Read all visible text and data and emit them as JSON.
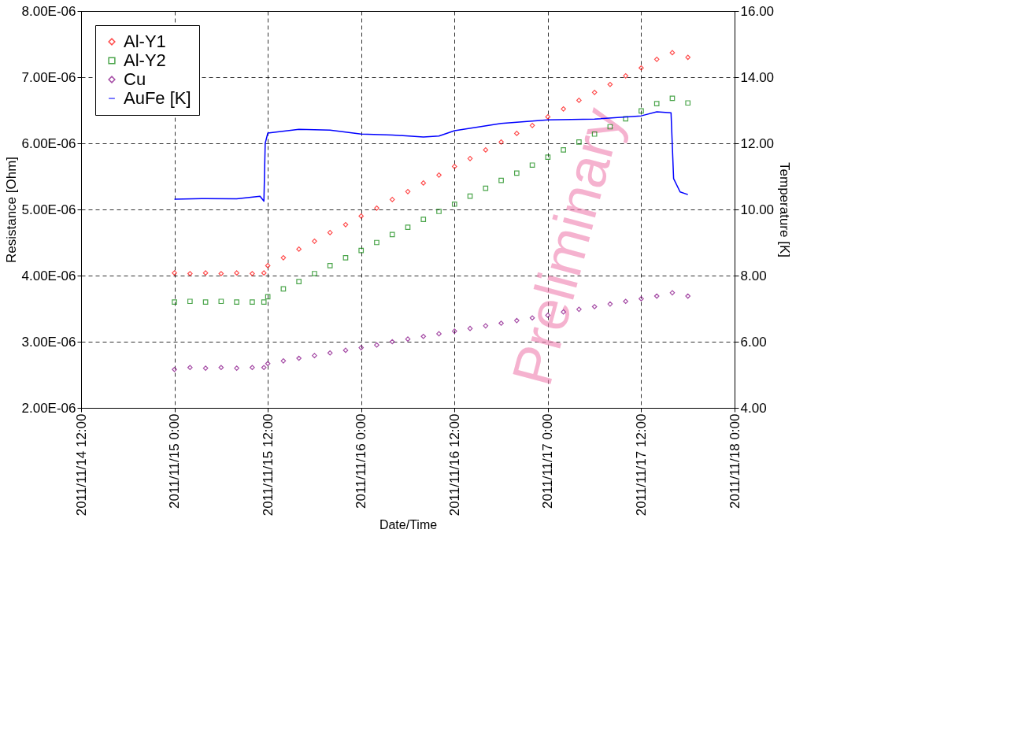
{
  "chart_data": {
    "type": "scatter",
    "xlabel": "Date/Time",
    "ylabel": "Resistance [Ohm]",
    "y2label": "Temperature [K]",
    "annotations": [
      "Preliminary"
    ],
    "x": [
      "2011-11-15T00:00",
      "2011-11-15T02:00",
      "2011-11-15T04:00",
      "2011-11-15T06:00",
      "2011-11-15T08:00",
      "2011-11-15T10:00",
      "2011-11-15T11:30",
      "2011-11-15T12:00",
      "2011-11-15T14:00",
      "2011-11-15T16:00",
      "2011-11-15T18:00",
      "2011-11-15T20:00",
      "2011-11-15T22:00",
      "2011-11-16T00:00",
      "2011-11-16T02:00",
      "2011-11-16T04:00",
      "2011-11-16T06:00",
      "2011-11-16T08:00",
      "2011-11-16T10:00",
      "2011-11-16T12:00",
      "2011-11-16T14:00",
      "2011-11-16T16:00",
      "2011-11-16T18:00",
      "2011-11-16T20:00",
      "2011-11-16T22:00",
      "2011-11-17T00:00",
      "2011-11-17T02:00",
      "2011-11-17T04:00",
      "2011-11-17T06:00",
      "2011-11-17T08:00",
      "2011-11-17T10:00",
      "2011-11-17T12:00",
      "2011-11-17T14:00",
      "2011-11-17T16:00",
      "2011-11-17T18:00"
    ],
    "series": [
      {
        "name": "Al-Y1",
        "color": "#ff0000",
        "marker": "diamond",
        "values": [
          4.04e-06,
          4.03e-06,
          4.04e-06,
          4.03e-06,
          4.04e-06,
          4.03e-06,
          4.04e-06,
          4.15e-06,
          4.27e-06,
          4.4e-06,
          4.52e-06,
          4.65e-06,
          4.77e-06,
          4.9e-06,
          5.02e-06,
          5.15e-06,
          5.27e-06,
          5.4e-06,
          5.52e-06,
          5.65e-06,
          5.77e-06,
          5.9e-06,
          6.02e-06,
          6.15e-06,
          6.27e-06,
          6.4e-06,
          6.52e-06,
          6.65e-06,
          6.77e-06,
          6.89e-06,
          7.02e-06,
          7.14e-06,
          7.27e-06,
          7.37e-06,
          7.3e-06
        ]
      },
      {
        "name": "Al-Y2",
        "color": "#008000",
        "marker": "square",
        "values": [
          3.6e-06,
          3.61e-06,
          3.6e-06,
          3.61e-06,
          3.6e-06,
          3.6e-06,
          3.6e-06,
          3.68e-06,
          3.8e-06,
          3.91e-06,
          4.03e-06,
          4.15e-06,
          4.27e-06,
          4.38e-06,
          4.5e-06,
          4.62e-06,
          4.73e-06,
          4.85e-06,
          4.97e-06,
          5.08e-06,
          5.2e-06,
          5.32e-06,
          5.44e-06,
          5.55e-06,
          5.67e-06,
          5.79e-06,
          5.9e-06,
          6.02e-06,
          6.14e-06,
          6.25e-06,
          6.37e-06,
          6.49e-06,
          6.6e-06,
          6.68e-06,
          6.61e-06
        ]
      },
      {
        "name": "Cu",
        "color": "#800080",
        "marker": "diamond",
        "values": [
          2.58e-06,
          2.61e-06,
          2.6e-06,
          2.61e-06,
          2.6e-06,
          2.61e-06,
          2.61e-06,
          2.67e-06,
          2.71e-06,
          2.75e-06,
          2.79e-06,
          2.83e-06,
          2.87e-06,
          2.91e-06,
          2.95e-06,
          3e-06,
          3.04e-06,
          3.08e-06,
          3.12e-06,
          3.16e-06,
          3.2e-06,
          3.24e-06,
          3.28e-06,
          3.32e-06,
          3.36e-06,
          3.4e-06,
          3.45e-06,
          3.49e-06,
          3.53e-06,
          3.57e-06,
          3.61e-06,
          3.65e-06,
          3.69e-06,
          3.74e-06,
          3.69e-06
        ]
      },
      {
        "name": "AuFe [K]",
        "type": "line",
        "axis": "y2",
        "color": "#0000ff",
        "marker": "none",
        "x": [
          "2011-11-15T00:00",
          "2011-11-15T04:00",
          "2011-11-15T08:00",
          "2011-11-15T11:00",
          "2011-11-15T11:30",
          "2011-11-15T11:40",
          "2011-11-15T12:00",
          "2011-11-15T16:00",
          "2011-11-15T20:00",
          "2011-11-16T00:00",
          "2011-11-16T04:00",
          "2011-11-16T08:00",
          "2011-11-16T10:00",
          "2011-11-16T12:00",
          "2011-11-16T18:00",
          "2011-11-17T00:00",
          "2011-11-17T06:00",
          "2011-11-17T12:00",
          "2011-11-17T14:00",
          "2011-11-17T15:50",
          "2011-11-17T16:10",
          "2011-11-17T17:00",
          "2011-11-17T18:00"
        ],
        "values": [
          10.31,
          10.33,
          10.32,
          10.4,
          10.25,
          12.0,
          12.31,
          12.42,
          12.4,
          12.28,
          12.25,
          12.19,
          12.22,
          12.38,
          12.6,
          12.71,
          12.73,
          12.83,
          12.95,
          12.92,
          10.93,
          10.53,
          10.45
        ]
      }
    ],
    "xlim": [
      "2011-11-14T12:00",
      "2011-11-18T00:00"
    ],
    "xticks": [
      {
        "value": "2011-11-14T12:00",
        "label": "2011/11/14 12:00"
      },
      {
        "value": "2011-11-15T00:00",
        "label": "2011/11/15 0:00"
      },
      {
        "value": "2011-11-15T12:00",
        "label": "2011/11/15 12:00"
      },
      {
        "value": "2011-11-16T00:00",
        "label": "2011/11/16 0:00"
      },
      {
        "value": "2011-11-16T12:00",
        "label": "2011/11/16 12:00"
      },
      {
        "value": "2011-11-17T00:00",
        "label": "2011/11/17 0:00"
      },
      {
        "value": "2011-11-17T12:00",
        "label": "2011/11/17 12:00"
      },
      {
        "value": "2011-11-18T00:00",
        "label": "2011/11/18 0:00"
      }
    ],
    "ylim": [
      2e-06,
      8e-06
    ],
    "yticks": [
      {
        "value": 2e-06,
        "label": "2.00E-06"
      },
      {
        "value": 3e-06,
        "label": "3.00E-06"
      },
      {
        "value": 4e-06,
        "label": "4.00E-06"
      },
      {
        "value": 5e-06,
        "label": "5.00E-06"
      },
      {
        "value": 6e-06,
        "label": "6.00E-06"
      },
      {
        "value": 7e-06,
        "label": "7.00E-06"
      },
      {
        "value": 8e-06,
        "label": "8.00E-06"
      }
    ],
    "y2lim": [
      4,
      16
    ],
    "y2ticks": [
      {
        "value": 4,
        "label": "4.00"
      },
      {
        "value": 6,
        "label": "6.00"
      },
      {
        "value": 8,
        "label": "8.00"
      },
      {
        "value": 10,
        "label": "10.00"
      },
      {
        "value": 12,
        "label": "12.00"
      },
      {
        "value": 14,
        "label": "14.00"
      },
      {
        "value": 16,
        "label": "16.00"
      }
    ],
    "grid": true,
    "legend": "top left",
    "line_style": "solid"
  }
}
